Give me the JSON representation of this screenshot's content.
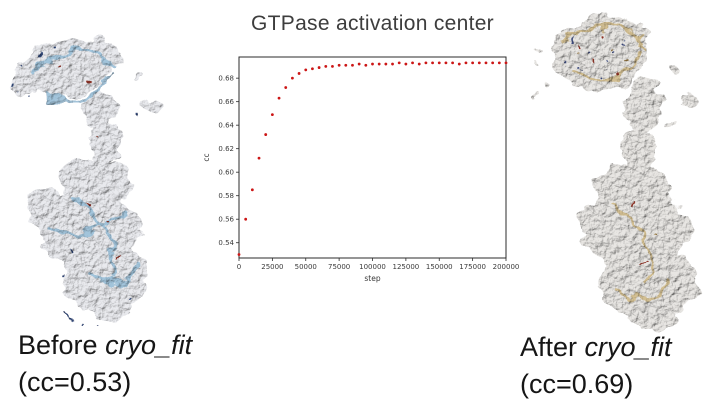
{
  "title": {
    "text": "GTPase activation center"
  },
  "captions": {
    "before": {
      "prefix": "Before ",
      "italic": "cryo_fit",
      "line2": "(cc=0.53)"
    },
    "after": {
      "prefix": "After ",
      "italic": "cryo_fit",
      "line2": "(cc=0.69)"
    }
  },
  "palette": {
    "marker_red": "#cc1616",
    "axis_color": "#2b2b2b",
    "tick_color": "#3a3a3a",
    "ribbon_blue": "#9fc2da",
    "ribbon_tan": "#d2bd8e",
    "density_gray": "#e9eaee"
  },
  "chart_data": {
    "type": "scatter",
    "title": "GTPase activation center",
    "xlabel": "step",
    "ylabel": "cc",
    "xlim": [
      0,
      200000
    ],
    "ylim": [
      0.527,
      0.698
    ],
    "x_ticks": [
      0,
      25000,
      50000,
      75000,
      100000,
      125000,
      150000,
      175000,
      200000
    ],
    "y_ticks": [
      0.54,
      0.56,
      0.58,
      0.6,
      0.62,
      0.64,
      0.66,
      0.68
    ],
    "grid": false,
    "legend": null,
    "marker_color": "#cc1616",
    "axis_color": "#2b2b2b",
    "tick_color": "#3a3a3a",
    "x": [
      0,
      5000,
      10000,
      15000,
      20000,
      25000,
      30000,
      35000,
      40000,
      45000,
      50000,
      55000,
      60000,
      65000,
      70000,
      75000,
      80000,
      85000,
      90000,
      95000,
      100000,
      105000,
      110000,
      115000,
      120000,
      125000,
      130000,
      135000,
      140000,
      145000,
      150000,
      155000,
      160000,
      165000,
      170000,
      175000,
      180000,
      185000,
      190000,
      195000,
      200000
    ],
    "y": [
      0.53,
      0.56,
      0.585,
      0.612,
      0.632,
      0.649,
      0.663,
      0.672,
      0.68,
      0.684,
      0.687,
      0.688,
      0.689,
      0.69,
      0.69,
      0.691,
      0.691,
      0.691,
      0.692,
      0.691,
      0.692,
      0.692,
      0.692,
      0.692,
      0.693,
      0.692,
      0.693,
      0.692,
      0.693,
      0.693,
      0.693,
      0.693,
      0.693,
      0.692,
      0.693,
      0.693,
      0.693,
      0.693,
      0.693,
      0.693,
      0.693
    ]
  }
}
